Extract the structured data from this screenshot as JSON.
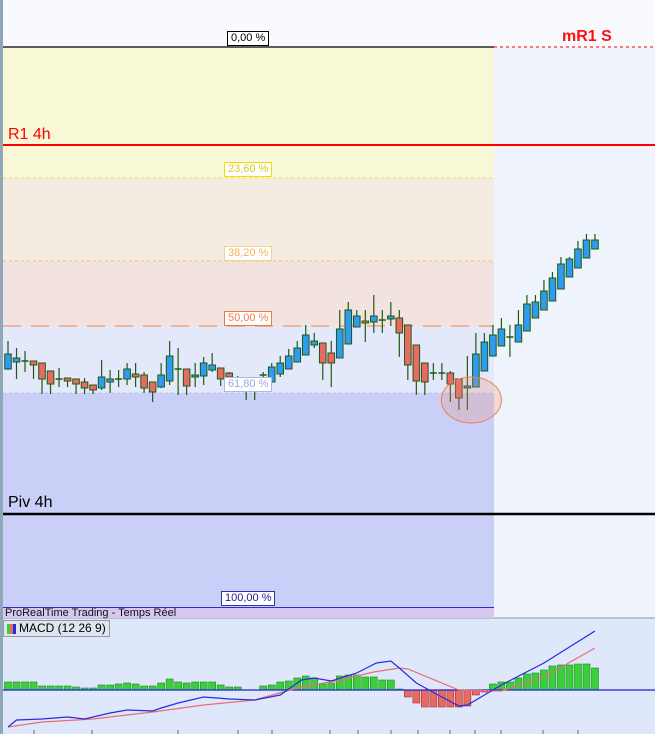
{
  "chart_data": {
    "type": "candlestick",
    "price_note": "",
    "candles": [
      [
        331,
        359,
        330,
        346
      ],
      [
        338,
        352,
        321,
        342
      ],
      [
        339,
        349,
        328,
        339
      ],
      [
        339,
        339,
        321,
        335
      ],
      [
        337,
        337,
        306,
        321
      ],
      [
        329,
        329,
        306,
        316
      ],
      [
        321,
        332,
        313,
        321
      ],
      [
        322,
        322,
        313,
        319
      ],
      [
        321,
        321,
        306,
        316
      ],
      [
        318,
        322,
        306,
        312
      ],
      [
        315,
        315,
        306,
        310
      ],
      [
        312,
        340,
        310,
        323
      ],
      [
        318,
        330,
        307,
        321
      ],
      [
        321,
        330,
        313,
        321
      ],
      [
        321,
        337,
        315,
        331
      ],
      [
        326,
        337,
        313,
        323
      ],
      [
        325,
        328,
        307,
        312
      ],
      [
        318,
        318,
        298,
        308
      ],
      [
        313,
        337,
        312,
        325
      ],
      [
        319,
        359,
        315,
        344
      ],
      [
        331,
        352,
        305,
        331
      ],
      [
        331,
        331,
        305,
        314
      ],
      [
        323,
        337,
        313,
        325
      ],
      [
        324,
        343,
        315,
        337
      ],
      [
        330,
        347,
        328,
        335
      ],
      [
        332,
        332,
        314,
        321
      ],
      [
        327,
        328,
        322,
        323
      ],
      [
        320,
        324,
        315,
        320
      ],
      [
        310,
        316,
        300,
        310
      ],
      [
        312,
        318,
        300,
        312
      ],
      [
        325,
        328,
        314,
        325
      ],
      [
        318,
        337,
        318,
        333
      ],
      [
        326,
        344,
        323,
        337
      ],
      [
        331,
        351,
        331,
        344
      ],
      [
        338,
        359,
        338,
        352
      ],
      [
        345,
        375,
        345,
        365
      ],
      [
        355,
        367,
        352,
        359
      ],
      [
        357,
        357,
        320,
        337
      ],
      [
        347,
        359,
        313,
        337
      ],
      [
        342,
        390,
        342,
        371
      ],
      [
        356,
        398,
        356,
        390
      ],
      [
        373,
        390,
        373,
        384
      ],
      [
        379,
        390,
        358,
        377
      ],
      [
        378,
        405,
        367,
        384
      ],
      [
        380,
        390,
        367,
        380
      ],
      [
        381,
        398,
        374,
        384
      ],
      [
        382,
        390,
        343,
        367
      ],
      [
        375,
        375,
        320,
        335
      ],
      [
        355,
        355,
        305,
        319
      ],
      [
        337,
        337,
        305,
        318
      ],
      [
        327,
        337,
        320,
        327
      ],
      [
        327,
        337,
        320,
        327
      ],
      [
        327,
        329,
        298,
        316
      ],
      [
        321,
        321,
        290,
        302
      ],
      [
        312,
        344,
        290,
        314
      ],
      [
        313,
        367,
        313,
        346
      ],
      [
        329,
        367,
        329,
        358
      ],
      [
        344,
        375,
        344,
        365
      ],
      [
        354,
        382,
        354,
        371
      ],
      [
        363,
        375,
        343,
        363
      ],
      [
        358,
        390,
        358,
        375
      ],
      [
        369,
        405,
        369,
        396
      ],
      [
        382,
        405,
        382,
        398
      ],
      [
        390,
        420,
        390,
        409
      ],
      [
        399,
        428,
        399,
        422
      ],
      [
        411,
        443,
        411,
        436
      ],
      [
        423,
        443,
        423,
        441
      ],
      [
        432,
        459,
        432,
        451
      ],
      [
        442,
        466,
        442,
        460
      ],
      [
        451,
        466,
        451,
        460
      ]
    ],
    "up_color": "#2f9bf0",
    "down_color": "#e86a64",
    "levels": {
      "fib_0": {
        "label": "0,00 %",
        "price": 653
      },
      "fib_236": {
        "label": "23,60 %",
        "price": 522
      },
      "fib_382": {
        "label": "38,20 %",
        "price": 439
      },
      "fib_50": {
        "label": "50,00 %",
        "price": 374
      },
      "fib_618": {
        "label": "61,80 %",
        "price": 307
      },
      "fib_100": {
        "label": "100,00 %",
        "price": 93
      },
      "r1_4h": {
        "label": "R1 4h",
        "price": 555,
        "color": "#ff0000"
      },
      "piv_4h": {
        "label": "Piv 4h",
        "price": 186,
        "color": "#000000"
      },
      "mr1_s": {
        "label": "mR1 S",
        "price": 653,
        "color": "#ff0000"
      }
    },
    "highlight_ellipse_candle": 54,
    "macd": {
      "label": "MACD (12 26 9)",
      "histogram": [
        8,
        8,
        8,
        8,
        4,
        4,
        4,
        4,
        3,
        2,
        2,
        5,
        5,
        6,
        7,
        6,
        4,
        4,
        7,
        11,
        8,
        7,
        8,
        8,
        8,
        5,
        3,
        3,
        0,
        0,
        4,
        5,
        8,
        9,
        12,
        14,
        12,
        6,
        7,
        14,
        15,
        15,
        13,
        13,
        10,
        10,
        1,
        -7,
        -13,
        -17,
        -17,
        -17,
        -17,
        -17,
        -16,
        -5,
        -2,
        6,
        8,
        8,
        12,
        16,
        17,
        20,
        24,
        25,
        25,
        26,
        26,
        22
      ],
      "macd_line": {
        "x": [
          0,
          1,
          4,
          7,
          9,
          12,
          14,
          17,
          18,
          20,
          23,
          26,
          29,
          32,
          34.5,
          36,
          38,
          41,
          43.3,
          45,
          46,
          48,
          51,
          53,
          54,
          56,
          58,
          63,
          66,
          69
        ],
        "y": [
          -37,
          -30,
          -29,
          -27,
          -29,
          -23,
          -20,
          -21,
          -18,
          -13,
          -7,
          -9,
          -10,
          -5,
          10,
          12,
          9,
          17,
          27,
          29,
          22,
          7,
          -7,
          -16,
          -15,
          -5,
          5,
          27,
          43,
          59
        ],
        "color": "#2a2ae0"
      },
      "signal_line": {
        "x": [
          0,
          4,
          10,
          17,
          23,
          29,
          34,
          39,
          43,
          46,
          47,
          53,
          58,
          63,
          69
        ],
        "y": [
          -37,
          -32,
          -29,
          -22,
          -15,
          -10,
          2,
          10,
          18,
          22,
          21,
          0,
          -1,
          13,
          42
        ],
        "color": "#e87070"
      },
      "hist_pos_color": "#3ccf3c",
      "hist_neg_color": "#e86a64"
    }
  },
  "footer": {
    "title": "ProRealTime Trading - Temps Réel"
  }
}
